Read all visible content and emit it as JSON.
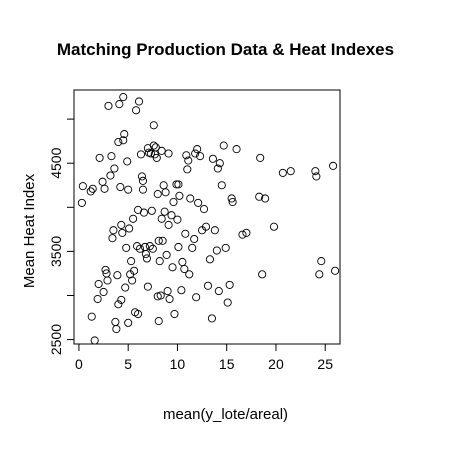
{
  "chart_data": {
    "type": "scatter",
    "title": "Matching Production Data & Heat Indexes",
    "xlabel": "mean(y_lote/areal)",
    "ylabel": "Mean Heat Index",
    "xlim": [
      -0.5,
      26.5
    ],
    "ylim": [
      2450,
      5330
    ],
    "x_ticks": [
      0,
      5,
      10,
      15,
      20,
      25
    ],
    "x_tick_labels": [
      "0",
      "5",
      "10",
      "15",
      "20",
      "25"
    ],
    "y_ticks": [
      2500,
      3500,
      4500
    ],
    "y_tick_labels": [
      "2500",
      "3500",
      "4500"
    ],
    "y_minor_ticks": [
      3000,
      4000,
      5000
    ],
    "marker": "open-circle",
    "grid": false,
    "legend": "none",
    "points": [
      {
        "x": 0.3,
        "y": 4050
      },
      {
        "x": 0.4,
        "y": 4240
      },
      {
        "x": 1.2,
        "y": 4180
      },
      {
        "x": 1.4,
        "y": 4210
      },
      {
        "x": 1.3,
        "y": 2760
      },
      {
        "x": 1.6,
        "y": 2490
      },
      {
        "x": 1.9,
        "y": 2960
      },
      {
        "x": 2.0,
        "y": 3130
      },
      {
        "x": 2.1,
        "y": 4560
      },
      {
        "x": 2.4,
        "y": 4290
      },
      {
        "x": 2.5,
        "y": 3040
      },
      {
        "x": 2.6,
        "y": 4210
      },
      {
        "x": 2.7,
        "y": 3290
      },
      {
        "x": 2.8,
        "y": 3250
      },
      {
        "x": 2.9,
        "y": 3170
      },
      {
        "x": 3.0,
        "y": 5150
      },
      {
        "x": 3.2,
        "y": 4360
      },
      {
        "x": 3.3,
        "y": 4580
      },
      {
        "x": 3.4,
        "y": 3650
      },
      {
        "x": 3.5,
        "y": 3740
      },
      {
        "x": 3.6,
        "y": 4440
      },
      {
        "x": 3.7,
        "y": 2700
      },
      {
        "x": 3.8,
        "y": 2620
      },
      {
        "x": 3.9,
        "y": 3230
      },
      {
        "x": 4.0,
        "y": 2900
      },
      {
        "x": 4.0,
        "y": 4740
      },
      {
        "x": 4.1,
        "y": 5170
      },
      {
        "x": 4.2,
        "y": 4230
      },
      {
        "x": 4.3,
        "y": 2950
      },
      {
        "x": 4.3,
        "y": 3800
      },
      {
        "x": 4.4,
        "y": 3710
      },
      {
        "x": 4.5,
        "y": 5250
      },
      {
        "x": 4.5,
        "y": 4760
      },
      {
        "x": 4.6,
        "y": 4830
      },
      {
        "x": 4.7,
        "y": 3090
      },
      {
        "x": 4.8,
        "y": 3540
      },
      {
        "x": 4.9,
        "y": 4520
      },
      {
        "x": 5.0,
        "y": 2690
      },
      {
        "x": 5.0,
        "y": 4200
      },
      {
        "x": 5.1,
        "y": 3760
      },
      {
        "x": 5.2,
        "y": 3240
      },
      {
        "x": 5.3,
        "y": 3390
      },
      {
        "x": 5.4,
        "y": 3170
      },
      {
        "x": 5.5,
        "y": 3870
      },
      {
        "x": 5.6,
        "y": 3280
      },
      {
        "x": 5.7,
        "y": 2810
      },
      {
        "x": 5.8,
        "y": 5100
      },
      {
        "x": 5.9,
        "y": 3560
      },
      {
        "x": 6.0,
        "y": 2790
      },
      {
        "x": 6.0,
        "y": 3970
      },
      {
        "x": 6.1,
        "y": 5200
      },
      {
        "x": 6.2,
        "y": 3530
      },
      {
        "x": 6.3,
        "y": 4600
      },
      {
        "x": 6.4,
        "y": 4350
      },
      {
        "x": 6.5,
        "y": 4300
      },
      {
        "x": 6.5,
        "y": 4200
      },
      {
        "x": 6.6,
        "y": 3940
      },
      {
        "x": 6.7,
        "y": 3550
      },
      {
        "x": 6.8,
        "y": 3470
      },
      {
        "x": 6.9,
        "y": 3420
      },
      {
        "x": 7.0,
        "y": 3100
      },
      {
        "x": 7.0,
        "y": 4670
      },
      {
        "x": 7.1,
        "y": 4620
      },
      {
        "x": 7.2,
        "y": 3560
      },
      {
        "x": 7.3,
        "y": 4610
      },
      {
        "x": 7.4,
        "y": 3960
      },
      {
        "x": 7.5,
        "y": 3530
      },
      {
        "x": 7.6,
        "y": 4700
      },
      {
        "x": 7.6,
        "y": 4930
      },
      {
        "x": 7.7,
        "y": 4600
      },
      {
        "x": 7.8,
        "y": 4680
      },
      {
        "x": 7.9,
        "y": 4560
      },
      {
        "x": 8.0,
        "y": 2990
      },
      {
        "x": 8.0,
        "y": 4150
      },
      {
        "x": 8.1,
        "y": 3620
      },
      {
        "x": 8.1,
        "y": 2710
      },
      {
        "x": 8.2,
        "y": 3390
      },
      {
        "x": 8.3,
        "y": 3000
      },
      {
        "x": 8.4,
        "y": 4640
      },
      {
        "x": 8.4,
        "y": 3870
      },
      {
        "x": 8.5,
        "y": 3620
      },
      {
        "x": 8.6,
        "y": 4250
      },
      {
        "x": 8.7,
        "y": 3950
      },
      {
        "x": 8.8,
        "y": 4170
      },
      {
        "x": 8.9,
        "y": 3460
      },
      {
        "x": 9.0,
        "y": 3050
      },
      {
        "x": 9.1,
        "y": 4610
      },
      {
        "x": 9.1,
        "y": 3800
      },
      {
        "x": 9.2,
        "y": 2960
      },
      {
        "x": 9.4,
        "y": 3910
      },
      {
        "x": 9.5,
        "y": 3320
      },
      {
        "x": 9.6,
        "y": 4060
      },
      {
        "x": 9.7,
        "y": 2790
      },
      {
        "x": 9.9,
        "y": 4260
      },
      {
        "x": 10.0,
        "y": 3860
      },
      {
        "x": 10.1,
        "y": 3550
      },
      {
        "x": 10.1,
        "y": 4260
      },
      {
        "x": 10.2,
        "y": 4130
      },
      {
        "x": 10.4,
        "y": 3060
      },
      {
        "x": 10.5,
        "y": 3380
      },
      {
        "x": 10.7,
        "y": 3300
      },
      {
        "x": 10.8,
        "y": 3700
      },
      {
        "x": 10.9,
        "y": 4590
      },
      {
        "x": 11.0,
        "y": 4430
      },
      {
        "x": 11.1,
        "y": 4530
      },
      {
        "x": 11.2,
        "y": 3240
      },
      {
        "x": 11.3,
        "y": 4100
      },
      {
        "x": 11.5,
        "y": 3540
      },
      {
        "x": 11.7,
        "y": 3640
      },
      {
        "x": 11.8,
        "y": 4610
      },
      {
        "x": 11.9,
        "y": 2980
      },
      {
        "x": 12.0,
        "y": 4660
      },
      {
        "x": 12.1,
        "y": 4050
      },
      {
        "x": 12.3,
        "y": 4580
      },
      {
        "x": 12.5,
        "y": 3740
      },
      {
        "x": 12.7,
        "y": 3980
      },
      {
        "x": 12.9,
        "y": 3780
      },
      {
        "x": 13.1,
        "y": 3110
      },
      {
        "x": 13.3,
        "y": 3410
      },
      {
        "x": 13.5,
        "y": 2740
      },
      {
        "x": 13.6,
        "y": 4550
      },
      {
        "x": 13.8,
        "y": 3740
      },
      {
        "x": 14.0,
        "y": 3510
      },
      {
        "x": 14.1,
        "y": 4440
      },
      {
        "x": 14.2,
        "y": 3050
      },
      {
        "x": 14.3,
        "y": 4500
      },
      {
        "x": 14.5,
        "y": 4250
      },
      {
        "x": 14.7,
        "y": 4700
      },
      {
        "x": 14.9,
        "y": 3540
      },
      {
        "x": 15.1,
        "y": 2920
      },
      {
        "x": 15.3,
        "y": 3120
      },
      {
        "x": 15.5,
        "y": 4100
      },
      {
        "x": 15.6,
        "y": 4060
      },
      {
        "x": 16.0,
        "y": 4660
      },
      {
        "x": 16.6,
        "y": 3690
      },
      {
        "x": 17.0,
        "y": 3710
      },
      {
        "x": 18.3,
        "y": 4120
      },
      {
        "x": 18.4,
        "y": 4560
      },
      {
        "x": 18.6,
        "y": 3240
      },
      {
        "x": 18.9,
        "y": 4100
      },
      {
        "x": 19.8,
        "y": 3780
      },
      {
        "x": 20.7,
        "y": 4390
      },
      {
        "x": 21.5,
        "y": 4410
      },
      {
        "x": 24.0,
        "y": 4410
      },
      {
        "x": 24.1,
        "y": 4350
      },
      {
        "x": 24.4,
        "y": 3240
      },
      {
        "x": 24.6,
        "y": 3390
      },
      {
        "x": 25.8,
        "y": 4470
      },
      {
        "x": 26.0,
        "y": 3280
      }
    ]
  }
}
